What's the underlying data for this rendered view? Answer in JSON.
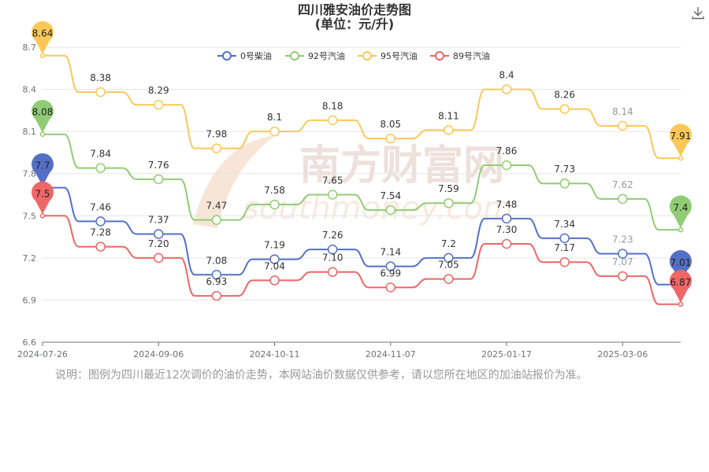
{
  "title_line1": "四川雅安油价走势图",
  "title_line2": "(单位：元/升)",
  "watermark_cn": "南方财富网",
  "watermark_en": "southmoney.com",
  "note": "说明：图例为四川最近12次调价的油价走势，本网站油价数据仅供参考，请以您所在地区的加油站报价为准。",
  "download_icon": "download-icon",
  "chart_data": {
    "type": "line",
    "title": "四川雅安油价走势图 (单位：元/升)",
    "ylim": [
      6.6,
      8.7
    ],
    "y_ticks": [
      "6.6",
      "6.9",
      "7.2",
      "7.5",
      "7.8",
      "8.1",
      "8.4",
      "8.7"
    ],
    "x_ticks": [
      "2024-07-26",
      "2024-09-06",
      "2024-10-11",
      "2024-11-07",
      "2025-01-17",
      "2025-03-06"
    ],
    "x_tick_indices": [
      0,
      2,
      4,
      6,
      8,
      10
    ],
    "legend_position": "top-center",
    "grid": "horizontal",
    "series": [
      {
        "name": "0号柴油",
        "color": "#5470c6",
        "values": [
          7.7,
          7.46,
          7.37,
          7.08,
          7.19,
          7.26,
          7.14,
          7.2,
          7.48,
          7.34,
          7.23,
          7.01
        ],
        "labels": [
          "7.7",
          "7.46",
          "7.37",
          "7.08",
          "7.19",
          "7.26",
          "7.14",
          "7.2",
          "7.48",
          "7.34",
          "7.23",
          "7.01"
        ]
      },
      {
        "name": "92号汽油",
        "color": "#91cc75",
        "values": [
          8.08,
          7.84,
          7.76,
          7.47,
          7.58,
          7.65,
          7.54,
          7.59,
          7.86,
          7.73,
          7.62,
          7.4
        ],
        "labels": [
          "8.08",
          "7.84",
          "7.76",
          "7.47",
          "7.58",
          "7.65",
          "7.54",
          "7.59",
          "7.86",
          "7.73",
          "7.62",
          "7.4"
        ]
      },
      {
        "name": "95号汽油",
        "color": "#fac858",
        "values": [
          8.64,
          8.38,
          8.29,
          7.98,
          8.1,
          8.18,
          8.05,
          8.11,
          8.4,
          8.26,
          8.14,
          7.91
        ],
        "labels": [
          "8.64",
          "8.38",
          "8.29",
          "7.98",
          "8.1",
          "8.18",
          "8.05",
          "8.11",
          "8.4",
          "8.26",
          "8.14",
          "7.91"
        ]
      },
      {
        "name": "89号汽油",
        "color": "#ee6666",
        "values": [
          7.5,
          7.28,
          7.2,
          6.93,
          7.04,
          7.1,
          6.99,
          7.05,
          7.3,
          7.17,
          7.07,
          6.87
        ],
        "labels": [
          "7.5",
          "7.28",
          "7.20",
          "6.93",
          "7.04",
          "7.10",
          "6.99",
          "7.05",
          "7.30",
          "7.17",
          "7.07",
          "6.87"
        ]
      }
    ]
  }
}
